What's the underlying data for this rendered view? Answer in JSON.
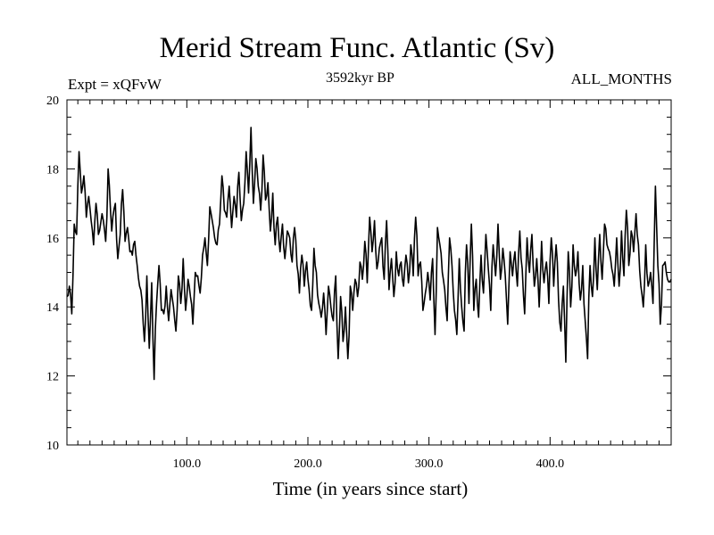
{
  "chart_data": {
    "type": "line",
    "title": "Merid Stream Func. Atlantic (Sv)",
    "expt_label": "Expt = xQFvW",
    "period_label": "3592kyr BP",
    "months_label": "ALL_MONTHS",
    "xlabel": "Time (in years since start)",
    "ylabel": "",
    "xlim": [
      1,
      500
    ],
    "ylim": [
      10,
      20
    ],
    "x_ticks": [
      100,
      200,
      300,
      400
    ],
    "x_tick_labels": [
      "100.0",
      "200.0",
      "300.0",
      "400.0"
    ],
    "y_ticks": [
      10,
      12,
      14,
      16,
      18,
      20
    ],
    "y_tick_labels": [
      "10",
      "12",
      "14",
      "16",
      "18",
      "20"
    ],
    "grid": false,
    "series": [
      {
        "name": "Merid Stream Func. Atlantic",
        "color": "#000000",
        "anchors": [
          [
            1,
            14.3
          ],
          [
            3,
            14.6
          ],
          [
            5,
            13.8
          ],
          [
            7,
            16.4
          ],
          [
            9,
            16.1
          ],
          [
            11,
            18.5
          ],
          [
            13,
            17.3
          ],
          [
            15,
            17.8
          ],
          [
            17,
            16.6
          ],
          [
            19,
            17.2
          ],
          [
            21,
            16.5
          ],
          [
            23,
            15.8
          ],
          [
            25,
            17.0
          ],
          [
            27,
            16.1
          ],
          [
            30,
            16.7
          ],
          [
            33,
            15.9
          ],
          [
            35,
            18.0
          ],
          [
            38,
            16.2
          ],
          [
            41,
            17.0
          ],
          [
            43,
            15.4
          ],
          [
            45,
            16.1
          ],
          [
            47,
            17.4
          ],
          [
            49,
            15.9
          ],
          [
            51,
            16.3
          ],
          [
            53,
            15.6
          ],
          [
            55,
            15.5
          ],
          [
            57,
            15.9
          ],
          [
            59,
            15.2
          ],
          [
            61,
            14.6
          ],
          [
            63,
            14.2
          ],
          [
            65,
            13.0
          ],
          [
            67,
            14.9
          ],
          [
            69,
            12.8
          ],
          [
            71,
            14.7
          ],
          [
            73,
            11.9
          ],
          [
            75,
            14.1
          ],
          [
            77,
            15.2
          ],
          [
            79,
            13.9
          ],
          [
            81,
            13.8
          ],
          [
            83,
            14.6
          ],
          [
            85,
            13.6
          ],
          [
            87,
            14.5
          ],
          [
            89,
            14.0
          ],
          [
            91,
            13.3
          ],
          [
            93,
            14.9
          ],
          [
            95,
            14.1
          ],
          [
            97,
            15.4
          ],
          [
            99,
            13.9
          ],
          [
            101,
            14.8
          ],
          [
            103,
            14.3
          ],
          [
            105,
            13.5
          ],
          [
            107,
            15.0
          ],
          [
            109,
            14.9
          ],
          [
            111,
            14.4
          ],
          [
            113,
            15.5
          ],
          [
            115,
            16.0
          ],
          [
            117,
            15.2
          ],
          [
            119,
            16.9
          ],
          [
            121,
            16.5
          ],
          [
            123,
            16.0
          ],
          [
            125,
            15.8
          ],
          [
            127,
            16.4
          ],
          [
            129,
            17.8
          ],
          [
            131,
            16.8
          ],
          [
            133,
            16.6
          ],
          [
            135,
            17.5
          ],
          [
            137,
            16.3
          ],
          [
            139,
            17.2
          ],
          [
            141,
            16.6
          ],
          [
            143,
            17.9
          ],
          [
            145,
            16.5
          ],
          [
            147,
            17.0
          ],
          [
            149,
            18.5
          ],
          [
            151,
            17.3
          ],
          [
            153,
            19.2
          ],
          [
            155,
            17.0
          ],
          [
            157,
            18.3
          ],
          [
            159,
            17.5
          ],
          [
            161,
            16.8
          ],
          [
            163,
            18.4
          ],
          [
            165,
            17.1
          ],
          [
            167,
            17.6
          ],
          [
            169,
            16.2
          ],
          [
            171,
            17.3
          ],
          [
            173,
            15.8
          ],
          [
            175,
            16.6
          ],
          [
            177,
            15.6
          ],
          [
            179,
            16.4
          ],
          [
            181,
            15.4
          ],
          [
            183,
            16.2
          ],
          [
            185,
            16.0
          ],
          [
            187,
            15.3
          ],
          [
            189,
            16.3
          ],
          [
            191,
            15.2
          ],
          [
            193,
            14.4
          ],
          [
            195,
            15.5
          ],
          [
            197,
            14.6
          ],
          [
            199,
            15.3
          ],
          [
            201,
            14.5
          ],
          [
            203,
            13.9
          ],
          [
            205,
            15.7
          ],
          [
            207,
            15.0
          ],
          [
            209,
            14.1
          ],
          [
            211,
            13.7
          ],
          [
            213,
            14.4
          ],
          [
            215,
            13.2
          ],
          [
            217,
            14.6
          ],
          [
            219,
            14.0
          ],
          [
            221,
            13.6
          ],
          [
            223,
            14.9
          ],
          [
            225,
            12.5
          ],
          [
            227,
            14.3
          ],
          [
            229,
            13.0
          ],
          [
            231,
            14.0
          ],
          [
            233,
            12.5
          ],
          [
            235,
            14.6
          ],
          [
            237,
            13.9
          ],
          [
            239,
            14.8
          ],
          [
            241,
            14.3
          ],
          [
            243,
            15.3
          ],
          [
            245,
            14.8
          ],
          [
            247,
            15.9
          ],
          [
            249,
            14.7
          ],
          [
            251,
            16.6
          ],
          [
            253,
            15.6
          ],
          [
            255,
            16.5
          ],
          [
            257,
            15.1
          ],
          [
            259,
            15.7
          ],
          [
            261,
            16.0
          ],
          [
            263,
            14.8
          ],
          [
            265,
            16.5
          ],
          [
            267,
            14.5
          ],
          [
            269,
            15.4
          ],
          [
            271,
            14.3
          ],
          [
            273,
            15.6
          ],
          [
            275,
            14.9
          ],
          [
            277,
            15.3
          ],
          [
            279,
            14.6
          ],
          [
            281,
            15.5
          ],
          [
            283,
            14.7
          ],
          [
            285,
            15.8
          ],
          [
            287,
            14.9
          ],
          [
            289,
            16.6
          ],
          [
            291,
            14.9
          ],
          [
            293,
            15.3
          ],
          [
            295,
            13.9
          ],
          [
            297,
            14.4
          ],
          [
            299,
            15.0
          ],
          [
            301,
            14.2
          ],
          [
            303,
            15.4
          ],
          [
            305,
            13.2
          ],
          [
            307,
            16.3
          ],
          [
            309,
            15.8
          ],
          [
            311,
            15.0
          ],
          [
            313,
            14.5
          ],
          [
            315,
            13.6
          ],
          [
            317,
            16.0
          ],
          [
            319,
            15.2
          ],
          [
            321,
            13.9
          ],
          [
            323,
            13.2
          ],
          [
            325,
            15.4
          ],
          [
            327,
            14.0
          ],
          [
            329,
            13.3
          ],
          [
            331,
            15.8
          ],
          [
            333,
            14.1
          ],
          [
            335,
            16.4
          ],
          [
            337,
            13.9
          ],
          [
            339,
            14.8
          ],
          [
            341,
            13.7
          ],
          [
            343,
            15.5
          ],
          [
            345,
            14.4
          ],
          [
            347,
            16.1
          ],
          [
            349,
            15.1
          ],
          [
            351,
            13.9
          ],
          [
            353,
            15.8
          ],
          [
            355,
            14.9
          ],
          [
            357,
            16.4
          ],
          [
            359,
            14.8
          ],
          [
            361,
            15.7
          ],
          [
            363,
            14.9
          ],
          [
            365,
            13.5
          ],
          [
            367,
            15.6
          ],
          [
            369,
            14.9
          ],
          [
            371,
            15.6
          ],
          [
            373,
            14.6
          ],
          [
            375,
            16.2
          ],
          [
            377,
            15.1
          ],
          [
            379,
            13.8
          ],
          [
            381,
            16.0
          ],
          [
            383,
            15.0
          ],
          [
            385,
            16.1
          ],
          [
            387,
            14.6
          ],
          [
            389,
            15.4
          ],
          [
            391,
            14.0
          ],
          [
            393,
            15.9
          ],
          [
            395,
            14.7
          ],
          [
            397,
            15.3
          ],
          [
            399,
            14.1
          ],
          [
            401,
            16.0
          ],
          [
            403,
            14.6
          ],
          [
            405,
            15.8
          ],
          [
            407,
            14.2
          ],
          [
            409,
            13.3
          ],
          [
            411,
            14.6
          ],
          [
            413,
            12.4
          ],
          [
            415,
            15.6
          ],
          [
            417,
            14.0
          ],
          [
            419,
            15.8
          ],
          [
            421,
            14.9
          ],
          [
            423,
            15.6
          ],
          [
            425,
            14.2
          ],
          [
            427,
            15.2
          ],
          [
            429,
            13.6
          ],
          [
            431,
            12.5
          ],
          [
            433,
            15.2
          ],
          [
            435,
            14.3
          ],
          [
            437,
            16.0
          ],
          [
            439,
            14.5
          ],
          [
            441,
            16.1
          ],
          [
            443,
            14.8
          ],
          [
            445,
            16.4
          ],
          [
            447,
            15.8
          ],
          [
            449,
            15.6
          ],
          [
            451,
            15.1
          ],
          [
            453,
            14.6
          ],
          [
            455,
            16.0
          ],
          [
            457,
            14.6
          ],
          [
            459,
            16.2
          ],
          [
            461,
            14.9
          ],
          [
            463,
            16.8
          ],
          [
            465,
            15.2
          ],
          [
            467,
            16.2
          ],
          [
            469,
            15.6
          ],
          [
            471,
            16.7
          ],
          [
            473,
            15.8
          ],
          [
            475,
            14.6
          ],
          [
            477,
            14.0
          ],
          [
            479,
            15.8
          ],
          [
            481,
            14.6
          ],
          [
            483,
            15.0
          ],
          [
            485,
            14.1
          ],
          [
            487,
            17.5
          ],
          [
            489,
            15.2
          ],
          [
            491,
            13.5
          ],
          [
            493,
            15.2
          ],
          [
            495,
            15.3
          ],
          [
            497,
            14.8
          ],
          [
            500,
            14.8
          ]
        ]
      }
    ]
  }
}
